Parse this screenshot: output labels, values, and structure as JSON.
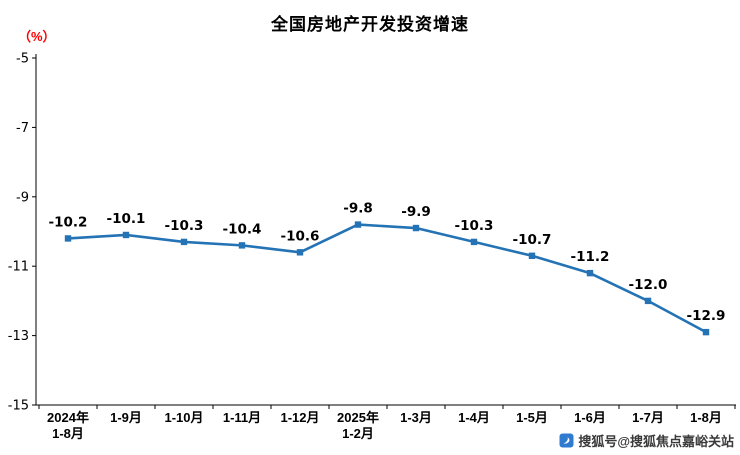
{
  "chart_data": {
    "type": "line",
    "title": "全国房地产开发投资增速",
    "ylabel": "（%）",
    "categories": [
      "2024年\n1-8月",
      "1-9月",
      "1-10月",
      "1-11月",
      "1-12月",
      "2025年\n1-2月",
      "1-3月",
      "1-4月",
      "1-5月",
      "1-6月",
      "1-7月",
      "1-8月"
    ],
    "values": [
      -10.2,
      -10.1,
      -10.3,
      -10.4,
      -10.6,
      -9.8,
      -9.9,
      -10.3,
      -10.7,
      -11.2,
      -12.0,
      -12.9
    ],
    "labels": [
      "-10.2",
      "-10.1",
      "-10.3",
      "-10.4",
      "-10.6",
      "-9.8",
      "-9.9",
      "-10.3",
      "-10.7",
      "-11.2",
      "-12.0",
      "-12.9"
    ],
    "ylim": [
      -15,
      -5
    ],
    "yticks": [
      -5,
      -7,
      -9,
      -11,
      -13,
      -15
    ],
    "line_color": "#2473B5",
    "label_color": "#000000",
    "axis_color": "#000000",
    "unit_color": "#ff0000",
    "grid": false,
    "legend": "none"
  },
  "watermark": {
    "text": "搜狐号@搜狐焦点嘉峪关站"
  }
}
